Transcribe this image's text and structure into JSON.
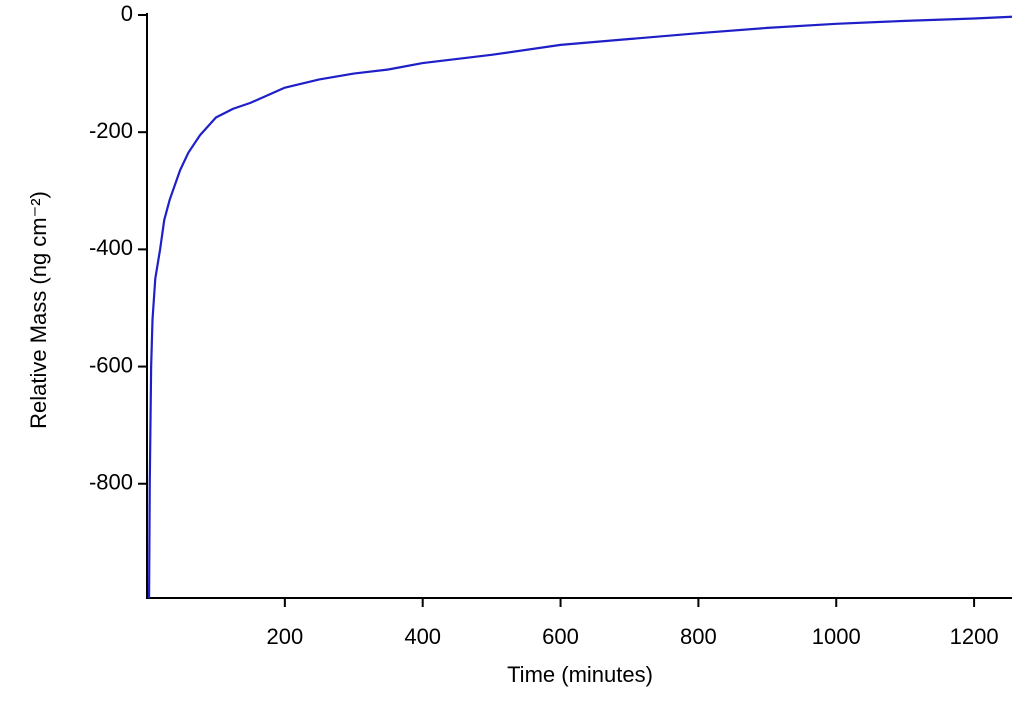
{
  "chart_data": {
    "type": "line",
    "xlabel": "Time (minutes)",
    "ylabel": "Relative Mass (ng cm⁻²)",
    "xlim": [
      0,
      1255
    ],
    "ylim": [
      -995,
      0
    ],
    "xticks": [
      200,
      400,
      600,
      800,
      1000,
      1200
    ],
    "yticks": [
      0,
      -200,
      -400,
      -600,
      -800
    ],
    "grid": false,
    "x": [
      3,
      4,
      6,
      8,
      12,
      19,
      25,
      33,
      48,
      60,
      77,
      100,
      125,
      150,
      200,
      250,
      300,
      350,
      400,
      500,
      600,
      700,
      800,
      900,
      1000,
      1100,
      1200,
      1255
    ],
    "series": [
      {
        "color": "#1f1fc8",
        "values": [
          -995,
          -800,
          -600,
          -520,
          -450,
          -400,
          -350,
          -315,
          -265,
          -235,
          -205,
          -175,
          -160,
          -150,
          -124,
          -110,
          -100,
          -93,
          -82,
          -68,
          -51,
          -41,
          -31,
          -22,
          -15,
          -10,
          -6,
          -3
        ]
      }
    ]
  }
}
